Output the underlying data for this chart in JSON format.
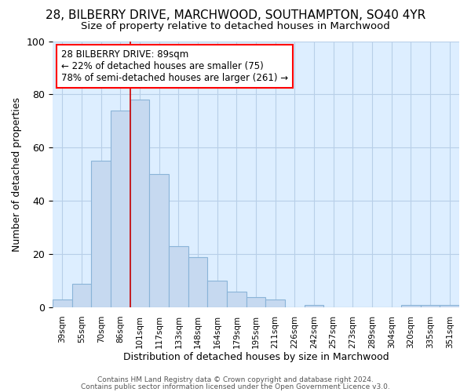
{
  "title1": "28, BILBERRY DRIVE, MARCHWOOD, SOUTHAMPTON, SO40 4YR",
  "title2": "Size of property relative to detached houses in Marchwood",
  "xlabel": "Distribution of detached houses by size in Marchwood",
  "ylabel": "Number of detached properties",
  "bar_labels": [
    "39sqm",
    "55sqm",
    "70sqm",
    "86sqm",
    "101sqm",
    "117sqm",
    "133sqm",
    "148sqm",
    "164sqm",
    "179sqm",
    "195sqm",
    "211sqm",
    "226sqm",
    "242sqm",
    "257sqm",
    "273sqm",
    "289sqm",
    "304sqm",
    "320sqm",
    "335sqm",
    "351sqm"
  ],
  "bar_values": [
    3,
    9,
    55,
    74,
    78,
    50,
    23,
    19,
    10,
    6,
    4,
    3,
    0,
    1,
    0,
    0,
    0,
    0,
    1,
    1,
    1
  ],
  "bar_color": "#c6d9f0",
  "bar_edgecolor": "#8ab4d8",
  "bar_linewidth": 0.8,
  "vline_x_idx": 3,
  "vline_color": "#cc0000",
  "annotation_text": "28 BILBERRY DRIVE: 89sqm\n← 22% of detached houses are smaller (75)\n78% of semi-detached houses are larger (261) →",
  "background_color": "#ffffff",
  "plot_bg_color": "#ddeeff",
  "grid_color": "#b8cfe8",
  "ylim": [
    0,
    100
  ],
  "title1_fontsize": 11,
  "title2_fontsize": 9.5,
  "footer1": "Contains HM Land Registry data © Crown copyright and database right 2024.",
  "footer2": "Contains public sector information licensed under the Open Government Licence v3.0."
}
